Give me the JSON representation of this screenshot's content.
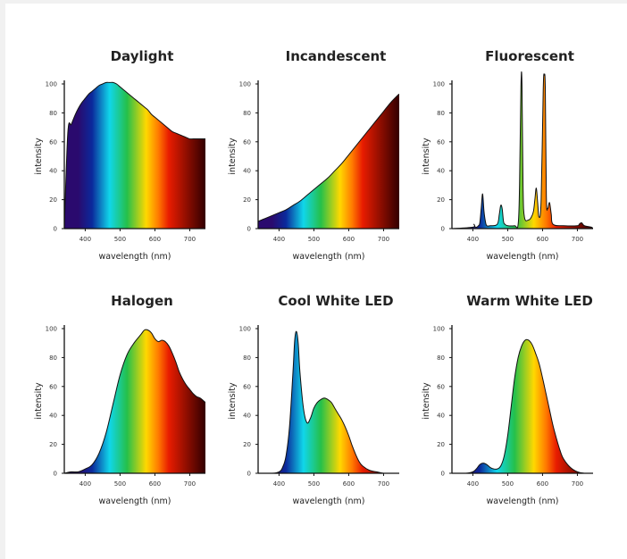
{
  "colors": {
    "violet": "#2a0a6e",
    "blue": "#0b2a9c",
    "cyan": "#10d6ea",
    "green": "#25c04a",
    "yellow": "#ffd800",
    "orange": "#ff7a00",
    "red": "#e81c00",
    "dark_red": "#3a0000"
  },
  "chart_data": [
    {
      "type": "area",
      "title": "Daylight",
      "xlabel": "wavelength (nm)",
      "ylabel": "intensity",
      "xlim": [
        340,
        745
      ],
      "ylim": [
        0,
        100
      ],
      "xticks": [
        400,
        500,
        600,
        700
      ],
      "yticks": [
        0,
        20,
        40,
        60,
        80,
        100
      ],
      "grid": false,
      "x": [
        340,
        350,
        360,
        370,
        380,
        390,
        400,
        410,
        420,
        430,
        440,
        450,
        460,
        470,
        480,
        490,
        500,
        510,
        520,
        530,
        540,
        550,
        560,
        570,
        580,
        590,
        600,
        610,
        620,
        630,
        640,
        650,
        660,
        670,
        680,
        690,
        700,
        710,
        720,
        730,
        740,
        745
      ],
      "y": [
        0,
        66,
        72,
        78,
        83,
        87,
        90,
        93,
        95,
        97,
        99,
        100,
        101,
        101,
        101,
        100,
        98,
        96,
        94,
        92,
        90,
        88,
        86,
        84,
        82,
        79,
        77,
        75,
        73,
        71,
        69,
        67,
        66,
        65,
        64,
        63,
        62,
        62,
        62,
        62,
        62,
        62
      ]
    },
    {
      "type": "area",
      "title": "Incandescent",
      "xlabel": "wavelength (nm)",
      "ylabel": "intensity",
      "xlim": [
        340,
        745
      ],
      "ylim": [
        0,
        100
      ],
      "xticks": [
        400,
        500,
        600,
        700
      ],
      "yticks": [
        0,
        20,
        40,
        60,
        80,
        100
      ],
      "grid": false,
      "x": [
        340,
        360,
        380,
        400,
        420,
        440,
        460,
        480,
        500,
        520,
        540,
        560,
        580,
        600,
        620,
        640,
        660,
        680,
        700,
        720,
        740,
        745
      ],
      "y": [
        5,
        7,
        9,
        11,
        13,
        16,
        19,
        23,
        27,
        31,
        35,
        40,
        45,
        51,
        57,
        63,
        69,
        75,
        81,
        87,
        92,
        93
      ]
    },
    {
      "type": "area",
      "title": "Fluorescent",
      "xlabel": "wavelength (nm)",
      "ylabel": "intensity",
      "xlim": [
        340,
        745
      ],
      "ylim": [
        0,
        100
      ],
      "xticks": [
        400,
        500,
        600,
        700
      ],
      "yticks": [
        0,
        20,
        40,
        60,
        80,
        100
      ],
      "grid": false,
      "x": [
        340,
        400,
        403,
        407,
        411,
        416,
        420,
        424,
        428,
        432,
        436,
        440,
        450,
        470,
        476,
        480,
        484,
        488,
        492,
        500,
        520,
        530,
        534,
        538,
        541,
        544,
        548,
        560,
        568,
        574,
        578,
        582,
        586,
        590,
        596,
        602,
        605,
        608,
        611,
        615,
        620,
        625,
        630,
        660,
        700,
        705,
        712,
        720,
        740,
        745
      ],
      "y": [
        0,
        1,
        3,
        1,
        1,
        2,
        4,
        14,
        24,
        12,
        5,
        2,
        2,
        3,
        10,
        16,
        14,
        5,
        3,
        2,
        2,
        3,
        30,
        98,
        100,
        30,
        8,
        6,
        8,
        12,
        20,
        28,
        18,
        8,
        20,
        96,
        106,
        96,
        22,
        14,
        18,
        10,
        3,
        2,
        2,
        3,
        4,
        2,
        1,
        0
      ]
    },
    {
      "type": "area",
      "title": "Halogen",
      "xlabel": "wavelength (nm)",
      "ylabel": "intensity",
      "xlim": [
        340,
        745
      ],
      "ylim": [
        0,
        100
      ],
      "xticks": [
        400,
        500,
        600,
        700
      ],
      "yticks": [
        0,
        20,
        40,
        60,
        80,
        100
      ],
      "grid": false,
      "x": [
        340,
        360,
        380,
        400,
        420,
        440,
        460,
        480,
        500,
        520,
        540,
        560,
        570,
        580,
        590,
        600,
        610,
        620,
        630,
        640,
        650,
        660,
        670,
        680,
        690,
        700,
        710,
        720,
        730,
        740,
        745
      ],
      "y": [
        0,
        1,
        1,
        3,
        6,
        14,
        28,
        48,
        68,
        82,
        90,
        96,
        99,
        99,
        97,
        93,
        91,
        92,
        91,
        88,
        83,
        77,
        70,
        65,
        61,
        58,
        55,
        53,
        52,
        50,
        49
      ]
    },
    {
      "type": "area",
      "title": "Cool White LED",
      "xlabel": "wavelength (nm)",
      "ylabel": "intensity",
      "xlim": [
        340,
        745
      ],
      "ylim": [
        0,
        100
      ],
      "xticks": [
        400,
        500,
        600,
        700
      ],
      "yticks": [
        0,
        20,
        40,
        60,
        80,
        100
      ],
      "grid": false,
      "x": [
        340,
        380,
        400,
        410,
        420,
        430,
        440,
        445,
        450,
        455,
        460,
        470,
        480,
        490,
        500,
        510,
        520,
        530,
        540,
        550,
        560,
        570,
        580,
        590,
        600,
        610,
        620,
        630,
        640,
        660,
        680,
        700,
        720,
        745
      ],
      "y": [
        0,
        0,
        1,
        4,
        12,
        32,
        70,
        92,
        98,
        90,
        70,
        45,
        35,
        38,
        45,
        49,
        51,
        52,
        51,
        49,
        45,
        41,
        37,
        32,
        26,
        19,
        13,
        8,
        5,
        2,
        1,
        0,
        0,
        0
      ]
    },
    {
      "type": "area",
      "title": "Warm White LED",
      "xlabel": "wavelength (nm)",
      "ylabel": "intensity",
      "xlim": [
        340,
        745
      ],
      "ylim": [
        0,
        100
      ],
      "xticks": [
        400,
        500,
        600,
        700
      ],
      "yticks": [
        0,
        20,
        40,
        60,
        80,
        100
      ],
      "grid": false,
      "x": [
        340,
        380,
        400,
        410,
        420,
        430,
        440,
        450,
        460,
        470,
        480,
        490,
        500,
        510,
        520,
        530,
        540,
        550,
        560,
        570,
        580,
        590,
        600,
        610,
        620,
        630,
        640,
        650,
        660,
        680,
        700,
        720,
        745
      ],
      "y": [
        0,
        0,
        1,
        3,
        6,
        7,
        6,
        4,
        3,
        3,
        5,
        12,
        26,
        46,
        66,
        80,
        88,
        92,
        92,
        89,
        83,
        76,
        66,
        55,
        44,
        33,
        24,
        16,
        10,
        4,
        1,
        0,
        0
      ]
    }
  ]
}
